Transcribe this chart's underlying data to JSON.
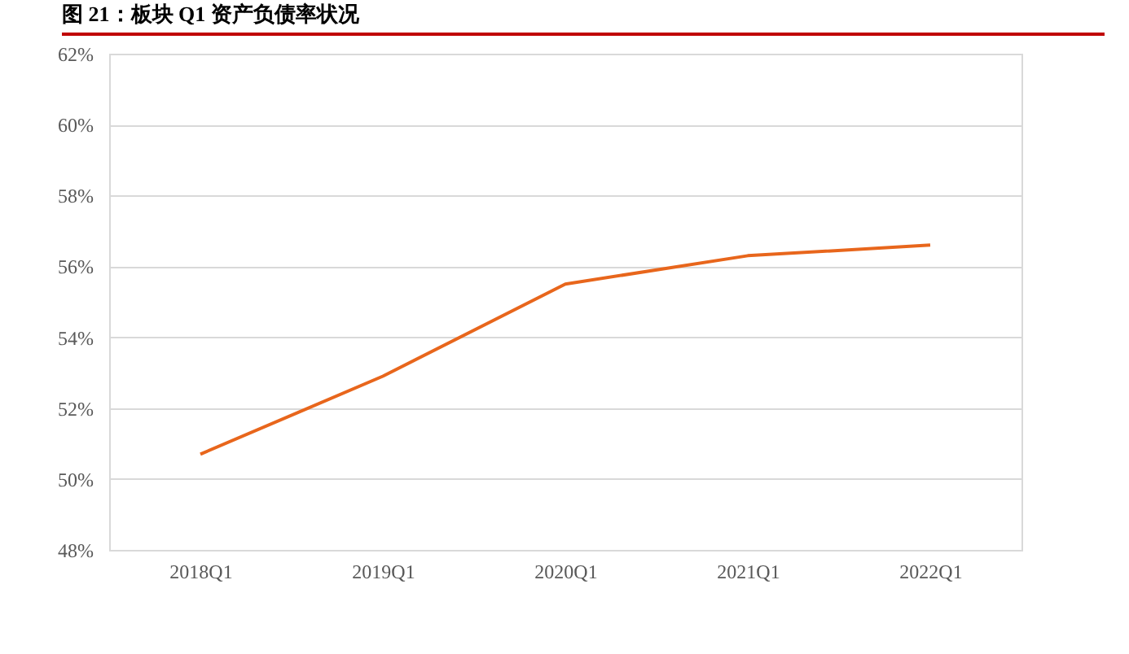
{
  "chart_data": {
    "type": "line",
    "title": "图 21：板块 Q1 资产负债率状况",
    "categories": [
      "2018Q1",
      "2019Q1",
      "2020Q1",
      "2021Q1",
      "2022Q1"
    ],
    "series": [
      {
        "color": "#e8661c",
        "values": [
          50.7,
          52.9,
          55.5,
          56.3,
          56.6
        ]
      }
    ],
    "ylim": [
      48,
      62
    ],
    "yticks": [
      {
        "value": 48,
        "label": "48%"
      },
      {
        "value": 50,
        "label": "50%"
      },
      {
        "value": 52,
        "label": "52%"
      },
      {
        "value": 54,
        "label": "54%"
      },
      {
        "value": 56,
        "label": "56%"
      },
      {
        "value": 58,
        "label": "58%"
      },
      {
        "value": 60,
        "label": "60%"
      },
      {
        "value": 62,
        "label": "62%"
      }
    ],
    "grid": "y",
    "legend": false,
    "marker": "none",
    "line_style": "solid"
  }
}
